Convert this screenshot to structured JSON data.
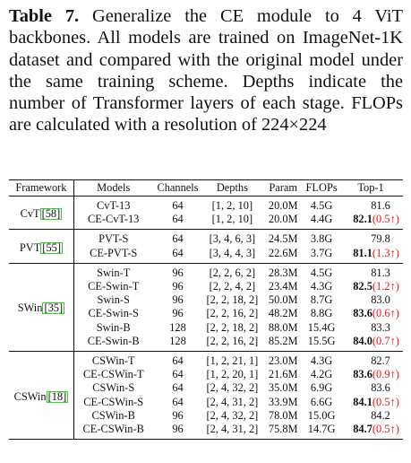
{
  "caption": {
    "label": "Table 7.",
    "text": " Generalize the CE module to 4 ViT backbones. All models are trained on ImageNet-1K dataset and compared with the original model under the same training scheme. Depths indicate the number of Transformer layers of each stage. FLOPs are calculated with a resolution of 224×224"
  },
  "table": {
    "headers": [
      "Framework",
      "Models",
      "Channels",
      "Depths",
      "Param",
      "FLOPs",
      "Top-1"
    ],
    "groups": [
      {
        "framework": "CvT",
        "cite": "58",
        "rows": [
          {
            "model": "CvT-13",
            "channels": "64",
            "depths": "[1, 2, 10]",
            "param": "20.0M",
            "flops": "4.5G",
            "top1": "81.6",
            "bold": false,
            "delta": ""
          },
          {
            "model": "CE-CvT-13",
            "channels": "64",
            "depths": "[1, 2, 10]",
            "param": "20.0M",
            "flops": "4.4G",
            "top1": "82.1",
            "bold": true,
            "delta": "(0.5↑)"
          }
        ]
      },
      {
        "framework": "PVT",
        "cite": "55",
        "rows": [
          {
            "model": "PVT-S",
            "channels": "64",
            "depths": "[3, 4, 6, 3]",
            "param": "24.5M",
            "flops": "3.8G",
            "top1": "79.8",
            "bold": false,
            "delta": ""
          },
          {
            "model": "CE-PVT-S",
            "channels": "64",
            "depths": "[3, 4, 4, 3]",
            "param": "22.6M",
            "flops": "3.7G",
            "top1": "81.1",
            "bold": true,
            "delta": "(1.3↑)"
          }
        ]
      },
      {
        "framework": "SWin",
        "cite": "35",
        "rows": [
          {
            "model": "Swin-T",
            "channels": "96",
            "depths": "[2, 2, 6, 2]",
            "param": "28.3M",
            "flops": "4.5G",
            "top1": "81.3",
            "bold": false,
            "delta": ""
          },
          {
            "model": "CE-Swin-T",
            "channels": "96",
            "depths": "[2, 2, 4, 2]",
            "param": "23.4M",
            "flops": "4.3G",
            "top1": "82.5",
            "bold": true,
            "delta": "(1.2↑)"
          },
          {
            "model": "Swin-S",
            "channels": "96",
            "depths": "[2, 2, 18, 2]",
            "param": "50.0M",
            "flops": "8.7G",
            "top1": "83.0",
            "bold": false,
            "delta": ""
          },
          {
            "model": "CE-Swin-S",
            "channels": "96",
            "depths": "[2, 2, 16, 2]",
            "param": "48.2M",
            "flops": "8.8G",
            "top1": "83.6",
            "bold": true,
            "delta": "(0.6↑)"
          },
          {
            "model": "Swin-B",
            "channels": "128",
            "depths": "[2, 2, 18, 2]",
            "param": "88.0M",
            "flops": "15.4G",
            "top1": "83.3",
            "bold": false,
            "delta": ""
          },
          {
            "model": "CE-Swin-B",
            "channels": "128",
            "depths": "[2, 2, 16, 2]",
            "param": "85.2M",
            "flops": "15.5G",
            "top1": "84.0",
            "bold": true,
            "delta": "(0.7↑)"
          }
        ]
      },
      {
        "framework": "CSWin",
        "cite": "18",
        "rows": [
          {
            "model": "CSWin-T",
            "channels": "64",
            "depths": "[1, 2, 21, 1]",
            "param": "23.0M",
            "flops": "4.3G",
            "top1": "82.7",
            "bold": false,
            "delta": ""
          },
          {
            "model": "CE-CSWin-T",
            "channels": "64",
            "depths": "[1, 2, 20, 1]",
            "param": "21.6M",
            "flops": "4.2G",
            "top1": "83.6",
            "bold": true,
            "delta": "(0.9↑)"
          },
          {
            "model": "CSWin-S",
            "channels": "64",
            "depths": "[2, 4, 32, 2]",
            "param": "35.0M",
            "flops": "6.9G",
            "top1": "83.6",
            "bold": false,
            "delta": ""
          },
          {
            "model": "CE-CSWin-S",
            "channels": "64",
            "depths": "[2, 4, 31, 2]",
            "param": "33.9M",
            "flops": "6.6G",
            "top1": "84.1",
            "bold": true,
            "delta": "(0.5↑)"
          },
          {
            "model": "CSWin-B",
            "channels": "96",
            "depths": "[2, 4, 32, 2]",
            "param": "78.0M",
            "flops": "15.0G",
            "top1": "84.2",
            "bold": false,
            "delta": ""
          },
          {
            "model": "CE-CSWin-B",
            "channels": "96",
            "depths": "[2, 4, 31, 2]",
            "param": "75.8M",
            "flops": "14.7G",
            "top1": "84.7",
            "bold": true,
            "delta": "(0.5↑)"
          }
        ]
      }
    ]
  }
}
